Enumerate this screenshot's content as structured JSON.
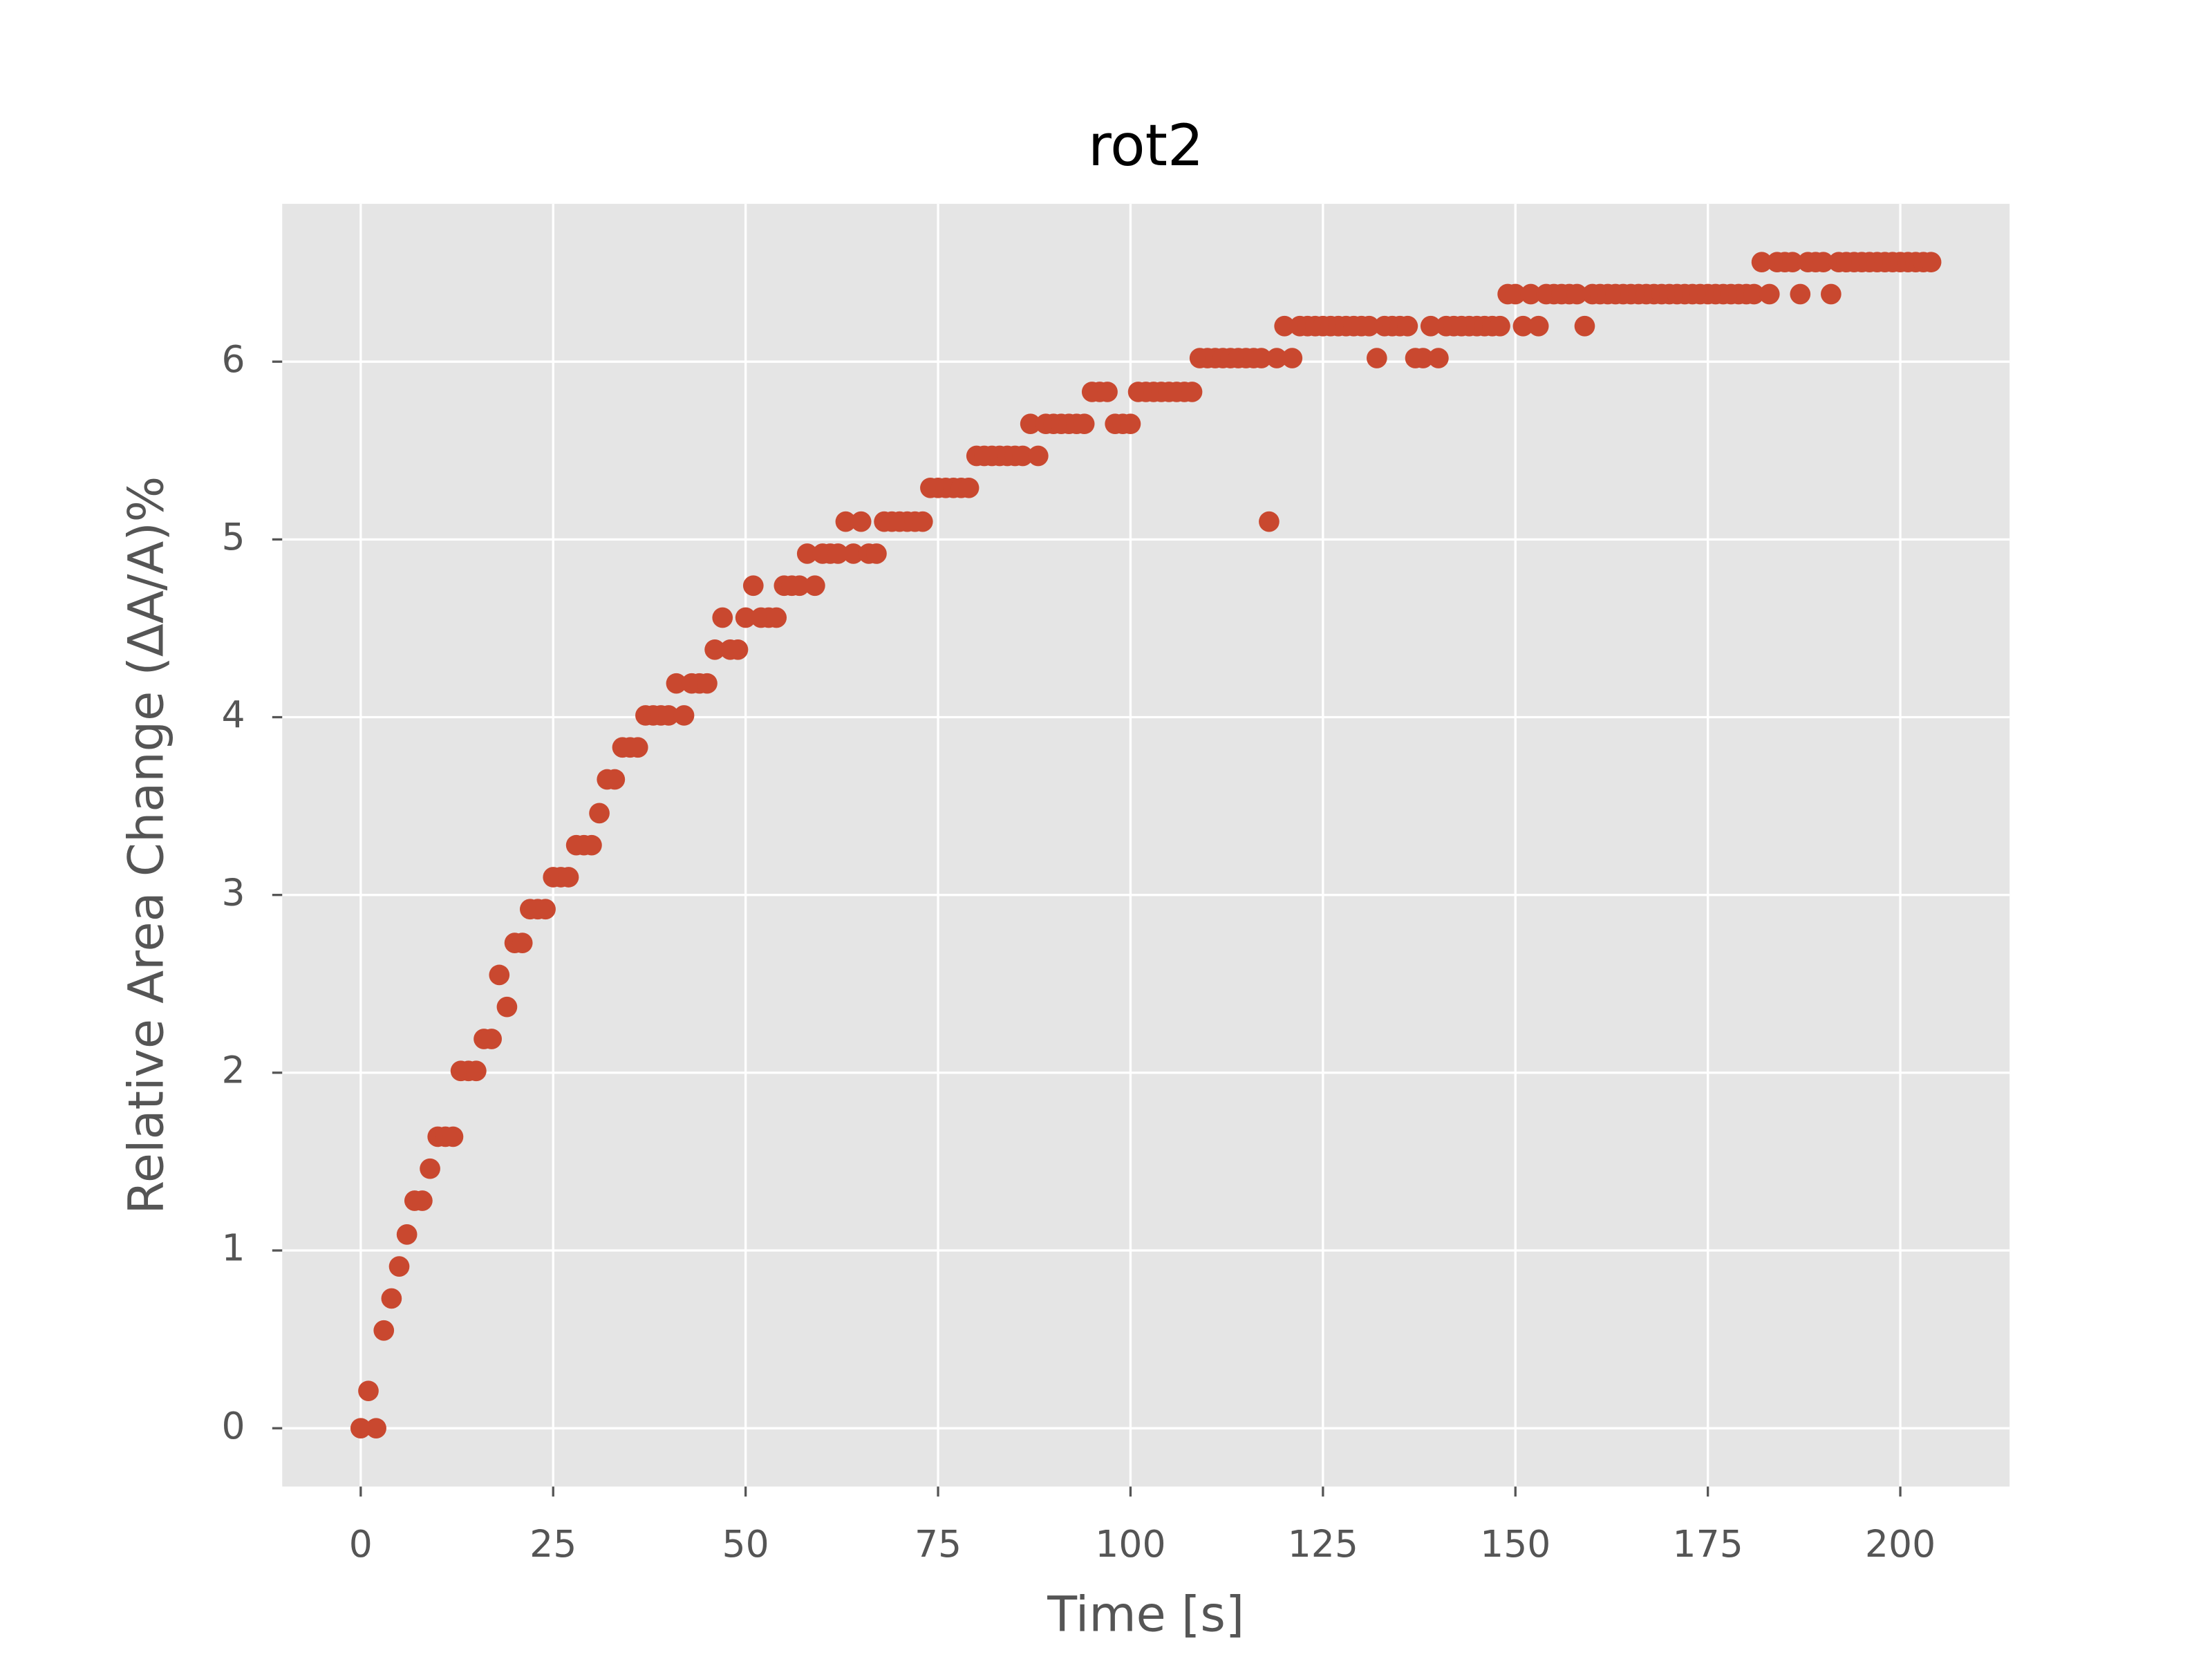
{
  "chart_data": {
    "type": "scatter",
    "title": "rot2",
    "x_label": "Time [s]",
    "y_label": "Relative Area Change (ΔA/A)%",
    "x": [
      0,
      1,
      2,
      3,
      4,
      5,
      6,
      7,
      8,
      9,
      10,
      11,
      12,
      13,
      14,
      15,
      16,
      17,
      18,
      19,
      20,
      21,
      22,
      23,
      24,
      25,
      26,
      27,
      28,
      29,
      30,
      31,
      32,
      33,
      34,
      35,
      36,
      37,
      38,
      39,
      40,
      41,
      42,
      43,
      44,
      45,
      46,
      47,
      48,
      49,
      50,
      51,
      52,
      53,
      54,
      55,
      56,
      57,
      58,
      59,
      60,
      61,
      62,
      63,
      64,
      65,
      66,
      67,
      68,
      69,
      70,
      71,
      72,
      73,
      74,
      75,
      76,
      77,
      78,
      79,
      80,
      81,
      82,
      83,
      84,
      85,
      86,
      87,
      88,
      89,
      90,
      91,
      92,
      93,
      94,
      95,
      96,
      97,
      98,
      99,
      100,
      101,
      102,
      103,
      104,
      105,
      106,
      107,
      108,
      109,
      110,
      111,
      112,
      113,
      114,
      115,
      116,
      117,
      118,
      119,
      120,
      121,
      122,
      123,
      124,
      125,
      126,
      127,
      128,
      129,
      130,
      131,
      132,
      133,
      134,
      135,
      136,
      137,
      138,
      139,
      140,
      141,
      142,
      143,
      144,
      145,
      146,
      147,
      148,
      149,
      150,
      151,
      152,
      153,
      154,
      155,
      156,
      157,
      158,
      159,
      160,
      161,
      162,
      163,
      164,
      165,
      166,
      167,
      168,
      169,
      170,
      171,
      172,
      173,
      174,
      175,
      176,
      177,
      178,
      179,
      180,
      181,
      182,
      183,
      184,
      185,
      186,
      187,
      188,
      189,
      190,
      191,
      192,
      193,
      194,
      195,
      196,
      197,
      198,
      199,
      200,
      201,
      202,
      203,
      204
    ],
    "values": [
      0,
      0.21,
      0,
      0.55,
      0.73,
      0.91,
      1.09,
      1.28,
      1.28,
      1.46,
      1.64,
      1.64,
      1.64,
      2.01,
      2.01,
      2.01,
      2.19,
      2.19,
      2.55,
      2.37,
      2.73,
      2.73,
      2.92,
      2.92,
      2.92,
      3.1,
      3.1,
      3.1,
      3.28,
      3.28,
      3.28,
      3.46,
      3.65,
      3.65,
      3.83,
      3.83,
      3.83,
      4.01,
      4.01,
      4.01,
      4.01,
      4.19,
      4.01,
      4.19,
      4.19,
      4.19,
      4.38,
      4.56,
      4.38,
      4.38,
      4.56,
      4.74,
      4.56,
      4.56,
      4.56,
      4.74,
      4.74,
      4.74,
      4.92,
      4.74,
      4.92,
      4.92,
      4.92,
      5.1,
      4.92,
      5.1,
      4.92,
      4.92,
      5.1,
      5.1,
      5.1,
      5.1,
      5.1,
      5.1,
      5.29,
      5.29,
      5.29,
      5.29,
      5.29,
      5.29,
      5.47,
      5.47,
      5.47,
      5.47,
      5.47,
      5.47,
      5.47,
      5.65,
      5.47,
      5.65,
      5.65,
      5.65,
      5.65,
      5.65,
      5.65,
      5.83,
      5.83,
      5.83,
      5.65,
      5.65,
      5.65,
      5.83,
      5.83,
      5.83,
      5.83,
      5.83,
      5.83,
      5.83,
      5.83,
      6.02,
      6.02,
      6.02,
      6.02,
      6.02,
      6.02,
      6.02,
      6.02,
      6.02,
      5.1,
      6.02,
      6.2,
      6.02,
      6.2,
      6.2,
      6.2,
      6.2,
      6.2,
      6.2,
      6.2,
      6.2,
      6.2,
      6.2,
      6.02,
      6.2,
      6.2,
      6.2,
      6.2,
      6.02,
      6.02,
      6.2,
      6.02,
      6.2,
      6.2,
      6.2,
      6.2,
      6.2,
      6.2,
      6.2,
      6.2,
      6.38,
      6.38,
      6.2,
      6.38,
      6.2,
      6.38,
      6.38,
      6.38,
      6.38,
      6.38,
      6.2,
      6.38,
      6.38,
      6.38,
      6.38,
      6.38,
      6.38,
      6.38,
      6.38,
      6.38,
      6.38,
      6.38,
      6.38,
      6.38,
      6.38,
      6.38,
      6.38,
      6.38,
      6.38,
      6.38,
      6.38,
      6.38,
      6.38,
      6.56,
      6.38,
      6.56,
      6.56,
      6.56,
      6.38,
      6.56,
      6.56,
      6.56,
      6.38,
      6.56,
      6.56,
      6.56,
      6.56,
      6.56,
      6.56,
      6.56,
      6.56,
      6.56,
      6.56,
      6.56,
      6.56,
      6.56
    ],
    "color": "#c9482f",
    "xlim": [
      -10.2,
      214.2
    ],
    "xticks": [
      0,
      25,
      50,
      75,
      100,
      125,
      150,
      175,
      200
    ],
    "ylim": [
      -0.328,
      6.888
    ],
    "yticks": [
      0,
      1,
      2,
      3,
      4,
      5,
      6
    ],
    "grid": true
  }
}
